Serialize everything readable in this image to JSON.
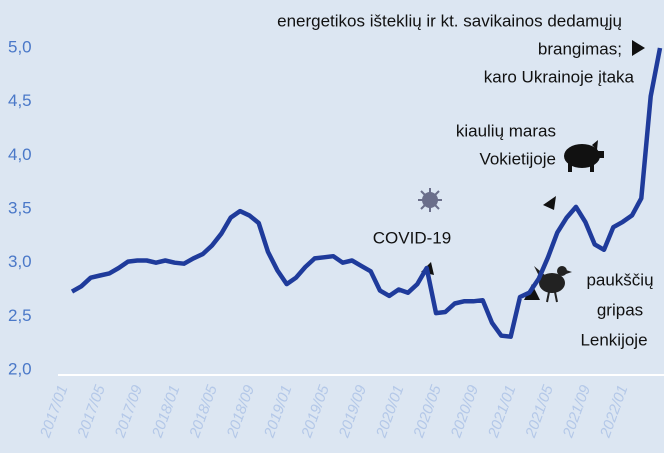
{
  "chart_data": {
    "type": "line",
    "categories": [
      "2017/01",
      null,
      null,
      null,
      "2017/05",
      null,
      null,
      null,
      "2017/09",
      null,
      null,
      null,
      "2018/01",
      null,
      null,
      null,
      "2018/05",
      null,
      null,
      null,
      "2018/09",
      null,
      null,
      null,
      "2019/01",
      null,
      null,
      null,
      "2019/05",
      null,
      null,
      null,
      "2019/09",
      null,
      null,
      null,
      "2020/01",
      null,
      null,
      null,
      "2020/05",
      null,
      null,
      null,
      "2020/09",
      null,
      null,
      null,
      "2021/01",
      null,
      null,
      null,
      "2021/05",
      null,
      null,
      null,
      "2021/09",
      null,
      null,
      null,
      "2022/01",
      null,
      null,
      null
    ],
    "values": [
      2.73,
      2.78,
      2.86,
      2.88,
      2.9,
      2.95,
      3.01,
      3.02,
      3.02,
      3.0,
      3.02,
      3.0,
      2.99,
      3.04,
      3.08,
      3.16,
      3.27,
      3.42,
      3.48,
      3.44,
      3.37,
      3.1,
      2.93,
      2.8,
      2.86,
      2.96,
      3.04,
      3.05,
      3.06,
      3.0,
      3.02,
      2.97,
      2.92,
      2.74,
      2.69,
      2.75,
      2.72,
      2.8,
      2.95,
      2.53,
      2.54,
      2.62,
      2.64,
      2.64,
      2.65,
      2.44,
      2.32,
      2.31,
      2.68,
      2.72,
      2.85,
      3.05,
      3.28,
      3.42,
      3.52,
      3.38,
      3.17,
      3.12,
      3.33,
      3.38,
      3.44,
      3.6,
      4.55,
      5.0
    ],
    "color": "#1f3b9b",
    "ylim": [
      2.0,
      5.0
    ],
    "yticks": [
      {
        "value": 2.0,
        "label": "2,0"
      },
      {
        "value": 2.5,
        "label": "2,5"
      },
      {
        "value": 3.0,
        "label": "3,0"
      },
      {
        "value": 3.5,
        "label": "3,5"
      },
      {
        "value": 4.0,
        "label": "4,0"
      },
      {
        "value": 4.5,
        "label": "4,5"
      },
      {
        "value": 5.0,
        "label": "5,0"
      }
    ],
    "annotations": [
      {
        "lines": [
          "energetikos išteklių ir kt. savikainos dedamųjų",
          "brangimas;",
          "karo Ukrainoje įtaka"
        ]
      },
      {
        "lines": [
          "kiaulių maras",
          "Vokietijoje"
        ]
      },
      {
        "lines": [
          "COVID-19"
        ]
      },
      {
        "lines": [
          "paukščių",
          "gripas",
          "Lenkijoje"
        ]
      }
    ]
  }
}
